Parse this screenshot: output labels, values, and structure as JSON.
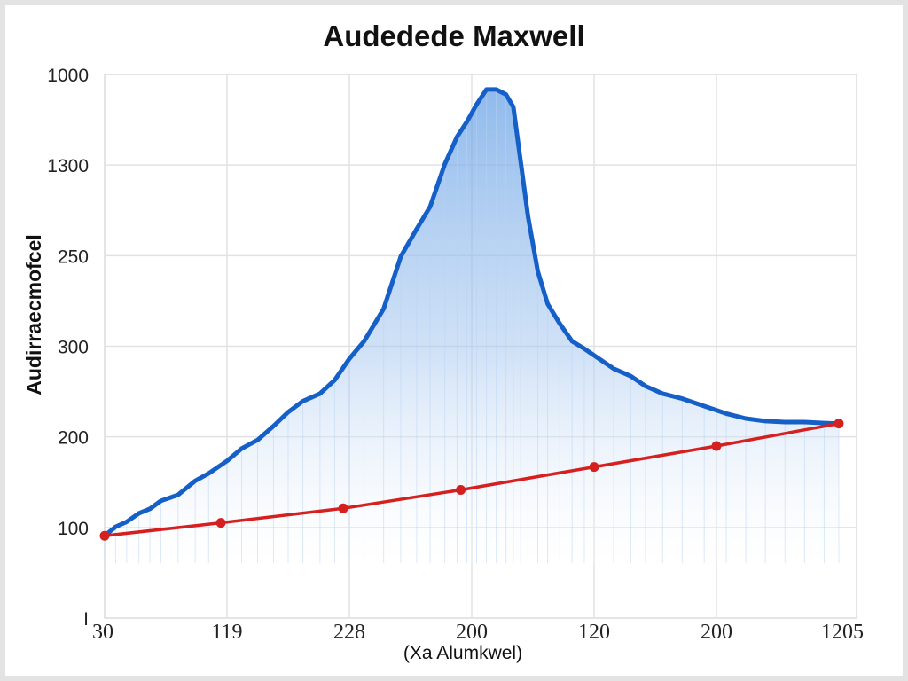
{
  "chart_data": {
    "type": "line",
    "title": "Audedede Maxwell",
    "xlabel": "(Xa Alumkwel)",
    "ylabel": "Audirraecmofcel",
    "x_tick_labels": [
      "30",
      "119",
      "228",
      "200",
      "120",
      "200",
      "1205"
    ],
    "y_tick_labels": [
      "1000",
      "1300",
      "250",
      "300",
      "200",
      "100",
      "I"
    ],
    "grid": true,
    "series": [
      {
        "style": "area",
        "color": "#1560c8",
        "fill_color": "#b9d3f3",
        "x": [
          0,
          0.09,
          0.18,
          0.28,
          0.37,
          0.46,
          0.6,
          0.74,
          0.85,
          1.0,
          1.12,
          1.25,
          1.38,
          1.5,
          1.62,
          1.76,
          1.88,
          2.0,
          2.12,
          2.28,
          2.42,
          2.55,
          2.66,
          2.78,
          2.88,
          2.96,
          3.04,
          3.12,
          3.2,
          3.28,
          3.34,
          3.4,
          3.46,
          3.54,
          3.62,
          3.72,
          3.82,
          3.92,
          4.04,
          4.16,
          4.3,
          4.42,
          4.56,
          4.72,
          4.9,
          5.08,
          5.24,
          5.4,
          5.56,
          5.72,
          5.88,
          6.0
        ],
        "y": [
          0.7,
          0.88,
          0.98,
          1.15,
          1.24,
          1.4,
          1.52,
          1.8,
          1.95,
          2.2,
          2.45,
          2.62,
          2.9,
          3.18,
          3.4,
          3.55,
          3.82,
          4.25,
          4.6,
          5.25,
          6.3,
          6.85,
          7.3,
          8.15,
          8.7,
          9.0,
          9.35,
          9.65,
          9.65,
          9.55,
          9.3,
          8.2,
          7.1,
          6.0,
          5.35,
          4.95,
          4.6,
          4.45,
          4.25,
          4.05,
          3.9,
          3.7,
          3.55,
          3.45,
          3.3,
          3.15,
          3.05,
          3.0,
          2.98,
          2.98,
          2.96,
          2.95
        ]
      },
      {
        "style": "line-markers",
        "color": "#d61f1f",
        "x": [
          0,
          0.95,
          1.95,
          2.91,
          4.0,
          5.0,
          6.0
        ],
        "y": [
          0.7,
          0.96,
          1.25,
          1.62,
          2.08,
          2.5,
          2.95
        ]
      }
    ],
    "xlim": [
      0,
      6
    ],
    "ylim": [
      -0.95,
      9.95
    ]
  }
}
